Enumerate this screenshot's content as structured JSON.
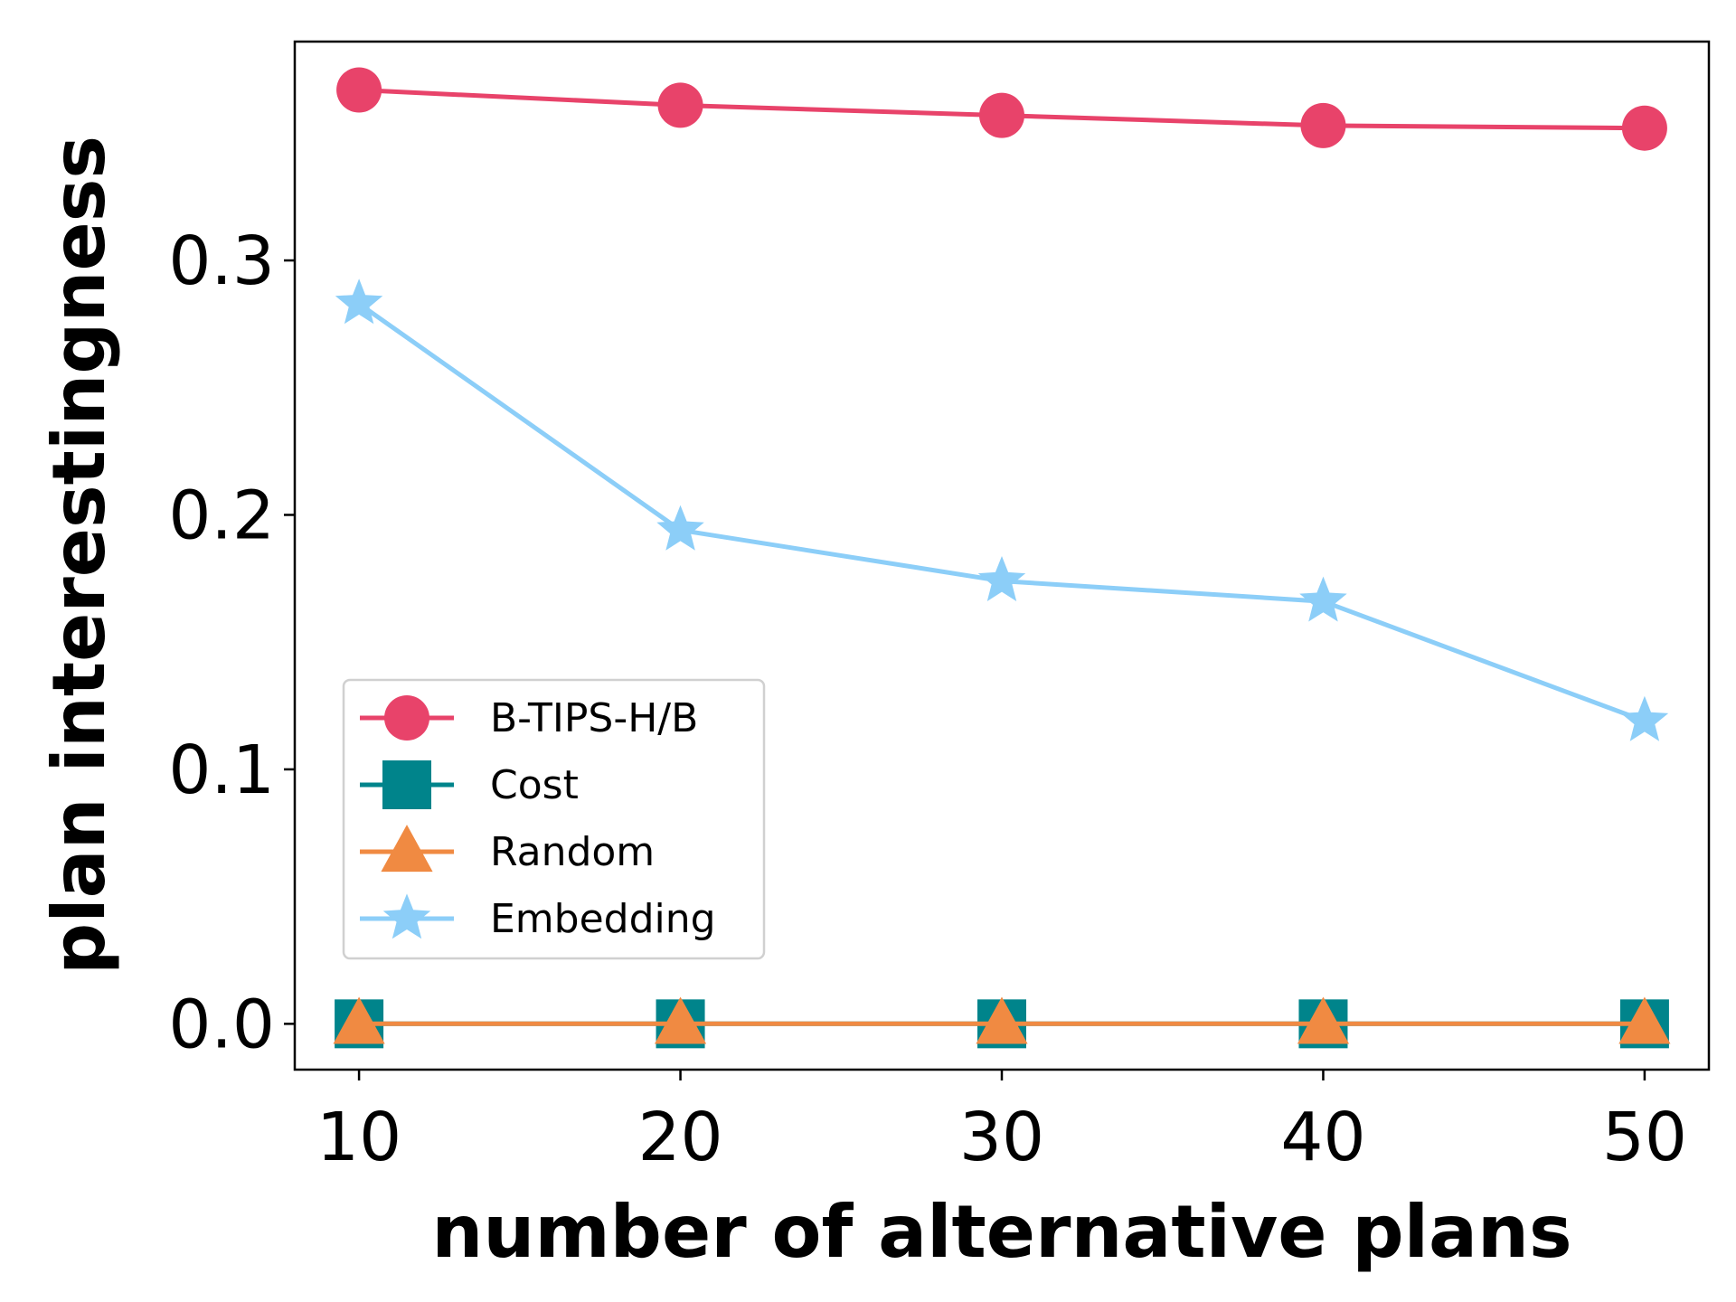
{
  "chart_data": {
    "type": "line",
    "xlabel": "number of alternative plans",
    "ylabel": "plan interestingness",
    "x": [
      10,
      20,
      30,
      40,
      50
    ],
    "x_ticks": [
      "10",
      "20",
      "30",
      "40",
      "50"
    ],
    "y_ticks": [
      "0.0",
      "0.1",
      "0.2",
      "0.3"
    ],
    "xlim": [
      8,
      52
    ],
    "ylim": [
      -0.018,
      0.386
    ],
    "grid": false,
    "legend_position": "lower-left",
    "series": [
      {
        "name": "B-TIPS-H/B",
        "values": [
          0.367,
          0.361,
          0.357,
          0.353,
          0.352
        ],
        "color": "#e8436a",
        "marker": "circle"
      },
      {
        "name": "Cost",
        "values": [
          0.0,
          0.0,
          0.0,
          0.0,
          0.0
        ],
        "color": "#00848b",
        "marker": "square"
      },
      {
        "name": "Random",
        "values": [
          0.0,
          0.0,
          0.0,
          0.0,
          0.0
        ],
        "color": "#f08a42",
        "marker": "triangle"
      },
      {
        "name": "Embedding",
        "values": [
          0.283,
          0.194,
          0.174,
          0.166,
          0.119
        ],
        "color": "#8ccef8",
        "marker": "star"
      }
    ]
  }
}
